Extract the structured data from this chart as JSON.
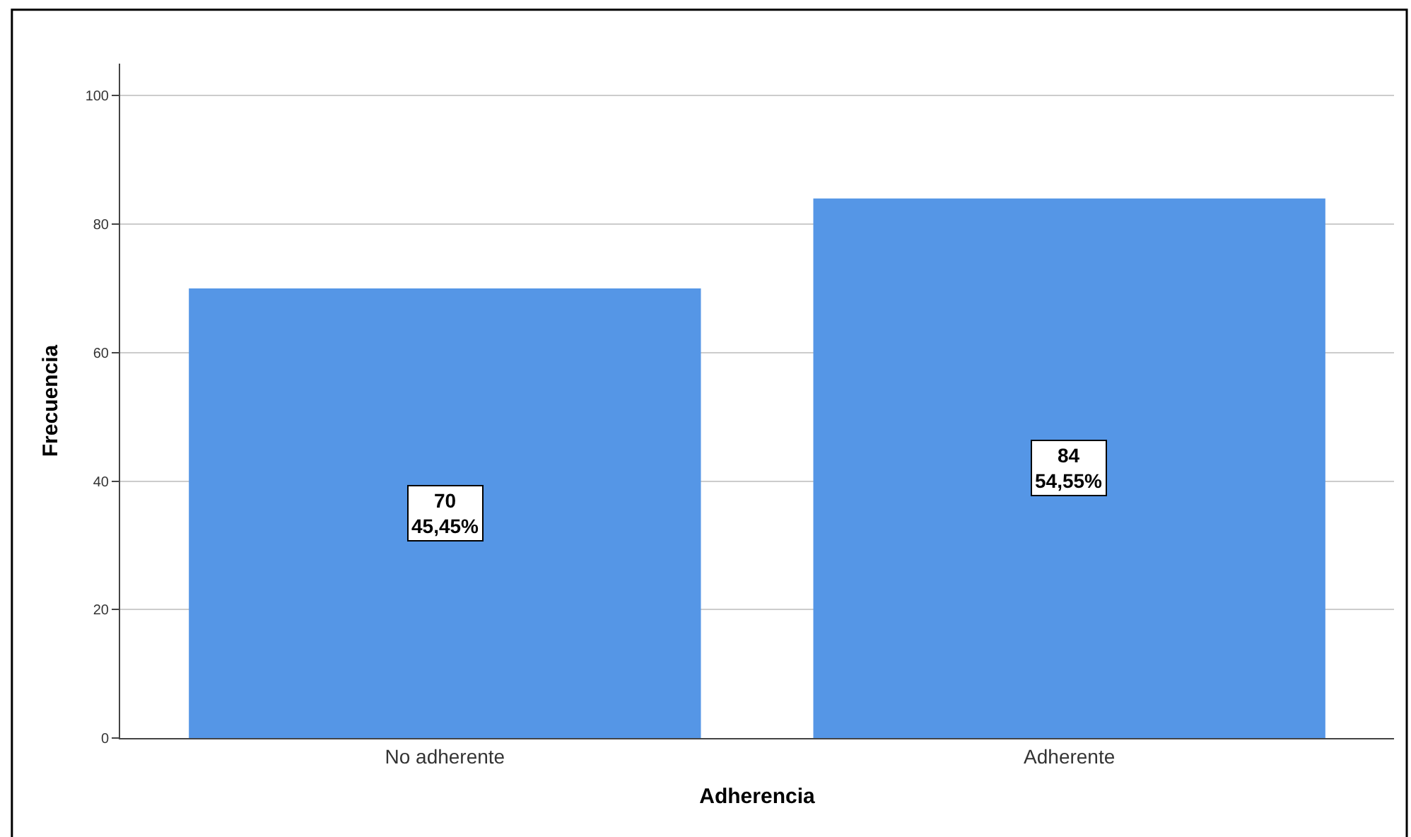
{
  "chart_data": {
    "type": "bar",
    "xlabel": "Adherencia",
    "ylabel": "Frecuencia",
    "categories": [
      "No adherente",
      "Adherente"
    ],
    "values": [
      70,
      84
    ],
    "color": "#5596e6",
    "value_labels": [
      "70\n45,45%",
      "84\n54,55%"
    ],
    "ylim": [
      0,
      105
    ],
    "yticks": [
      0,
      20,
      40,
      60,
      80,
      100
    ],
    "grid": "y",
    "legend": false
  }
}
